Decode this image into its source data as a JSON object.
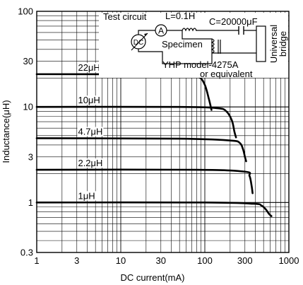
{
  "chart_data": {
    "type": "line",
    "title": "",
    "xlabel": "DC current(mA)",
    "ylabel": "Inductance(μH)",
    "x_scale": "log",
    "y_scale": "log",
    "xlim": [
      1,
      1000
    ],
    "ylim": [
      0.3,
      100
    ],
    "x_ticks": [
      1,
      3,
      10,
      30,
      100,
      300,
      1000
    ],
    "x_tick_labels": [
      "1",
      "3",
      "10",
      "30",
      "100",
      "300",
      "1000"
    ],
    "y_ticks": [
      0.3,
      1,
      3,
      10,
      30,
      100
    ],
    "y_tick_labels": [
      "0.3",
      "1",
      "3",
      "10",
      "30",
      "100"
    ],
    "grid": true,
    "series": [
      {
        "name": "22μH",
        "points": [
          [
            1,
            22
          ],
          [
            20,
            21.9
          ],
          [
            60,
            21.5
          ],
          [
            85,
            20.5
          ],
          [
            100,
            17
          ],
          [
            112,
            12
          ],
          [
            120,
            9.3
          ]
        ]
      },
      {
        "name": "10μH",
        "points": [
          [
            1,
            10
          ],
          [
            50,
            10
          ],
          [
            140,
            9.7
          ],
          [
            180,
            9.0
          ],
          [
            210,
            7.2
          ],
          [
            225,
            5.5
          ],
          [
            235,
            4.8
          ]
        ]
      },
      {
        "name": "4.7μH",
        "points": [
          [
            1,
            4.7
          ],
          [
            50,
            4.65
          ],
          [
            200,
            4.45
          ],
          [
            260,
            4.2
          ],
          [
            285,
            3.6
          ],
          [
            300,
            3.0
          ],
          [
            310,
            2.7
          ]
        ]
      },
      {
        "name": "2.2μH",
        "points": [
          [
            1,
            2.2
          ],
          [
            80,
            2.2
          ],
          [
            300,
            2.1
          ],
          [
            340,
            1.9
          ],
          [
            360,
            1.5
          ],
          [
            370,
            1.25
          ]
        ]
      },
      {
        "name": "1μH",
        "points": [
          [
            1,
            1
          ],
          [
            100,
            1
          ],
          [
            380,
            0.97
          ],
          [
            470,
            0.93
          ],
          [
            530,
            0.85
          ],
          [
            580,
            0.76
          ],
          [
            620,
            0.72
          ]
        ]
      }
    ],
    "inset": {
      "title": "Test circuit",
      "inductor_label": "L=0.1H",
      "capacitor_label": "C=20000μF",
      "ammeter_symbol": "A",
      "source_symbol": "DC",
      "specimen_label": "Specimen",
      "bridge_label": [
        "Universal",
        "bridge"
      ],
      "instrument_label": [
        "YHP model-4275A",
        "or equivalent"
      ]
    }
  }
}
